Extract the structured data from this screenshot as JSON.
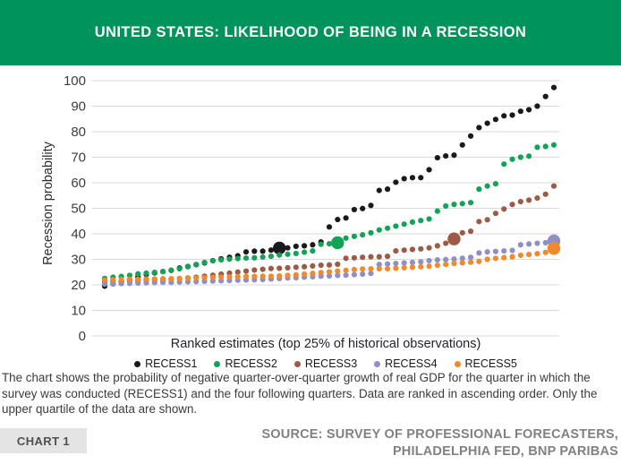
{
  "header": {
    "title": "UNITED STATES: LIKELIHOOD OF BEING IN A RECESSION",
    "bg_color": "#00935B"
  },
  "chart_data": {
    "type": "scatter",
    "title": "UNITED STATES: LIKELIHOOD OF BEING IN A RECESSION",
    "xlabel": "Ranked estimates (top 25% of historical observations)",
    "ylabel": "Recession probability",
    "ylim": [
      0,
      100
    ],
    "yticks": [
      0,
      10,
      20,
      30,
      40,
      50,
      60,
      70,
      80,
      90,
      100
    ],
    "grid": "horizontal",
    "legend_position": "bottom",
    "n_points": 55,
    "x_description": "Ranked ascending historical survey observations (upper quartile only); enlarged dot marks the current estimate within each ranked series",
    "series": [
      {
        "name": "RECESS1",
        "color": "#1a1a1a",
        "highlight_index": 21,
        "highlight_value": 34.4,
        "values": [
          19.5,
          20.4,
          21.2,
          22.1,
          23.1,
          24.1,
          24.7,
          25.2,
          25.7,
          26.6,
          27.2,
          27.9,
          28.6,
          29.5,
          30.2,
          30.8,
          31.4,
          32.9,
          33.2,
          33.2,
          33.6,
          34.4,
          34.5,
          35.1,
          35.3,
          35.7,
          36.8,
          42.7,
          45.6,
          46.2,
          49.5,
          49.9,
          51.1,
          57.0,
          57.5,
          60.2,
          61.6,
          62.0,
          62.0,
          65.1,
          69.8,
          70.5,
          70.8,
          74.8,
          78.3,
          81.6,
          83.3,
          84.8,
          86.2,
          86.5,
          88.0,
          88.6,
          90.0,
          93.8,
          97.3
        ]
      },
      {
        "name": "RECESS2",
        "color": "#12A356",
        "highlight_index": 28,
        "highlight_value": 36.5,
        "values": [
          22.5,
          23.0,
          23.3,
          23.7,
          24.3,
          24.6,
          24.9,
          25.2,
          25.7,
          26.3,
          27.1,
          28.0,
          28.8,
          29.4,
          29.8,
          30.1,
          30.3,
          30.5,
          30.6,
          30.9,
          31.2,
          31.7,
          32.0,
          32.3,
          32.8,
          33.3,
          35.9,
          36.1,
          36.5,
          38.3,
          39.0,
          39.6,
          40.4,
          41.5,
          42.2,
          43.0,
          43.8,
          44.6,
          45.2,
          45.8,
          48.9,
          50.9,
          51.5,
          51.8,
          52.2,
          57.5,
          58.7,
          59.6,
          67.3,
          69.2,
          70.0,
          70.4,
          73.9,
          74.2,
          74.8
        ]
      },
      {
        "name": "RECESS3",
        "color": "#9E5A45",
        "highlight_index": 42,
        "highlight_value": 38.0,
        "values": [
          21.3,
          21.4,
          21.5,
          21.6,
          21.7,
          21.8,
          21.9,
          22.0,
          22.2,
          22.4,
          22.7,
          23.0,
          23.4,
          23.8,
          24.2,
          24.6,
          25.0,
          25.4,
          25.8,
          26.1,
          26.4,
          26.5,
          26.7,
          26.9,
          27.1,
          27.4,
          27.7,
          27.8,
          28.1,
          30.4,
          30.6,
          30.8,
          31.0,
          31.0,
          31.2,
          33.3,
          33.6,
          33.9,
          34.1,
          34.5,
          35.3,
          36.3,
          38.0,
          40.4,
          41.0,
          44.8,
          45.5,
          48.0,
          49.7,
          51.5,
          52.6,
          53.2,
          54.0,
          55.5,
          58.7
        ]
      },
      {
        "name": "RECESS4",
        "color": "#8F8EC7",
        "highlight_index": 54,
        "highlight_value": 37.2,
        "values": [
          20.3,
          20.4,
          20.5,
          20.6,
          20.7,
          20.8,
          20.9,
          21.0,
          21.0,
          21.1,
          21.2,
          21.3,
          21.4,
          21.5,
          21.6,
          21.7,
          21.8,
          21.9,
          22.0,
          22.1,
          22.3,
          22.5,
          22.7,
          22.8,
          23.0,
          23.2,
          23.4,
          23.5,
          23.7,
          23.8,
          24.0,
          24.2,
          24.5,
          28.0,
          28.2,
          28.4,
          28.6,
          28.8,
          29.0,
          29.5,
          29.8,
          29.9,
          30.1,
          30.4,
          30.8,
          32.5,
          32.9,
          33.1,
          33.3,
          33.5,
          35.7,
          36.0,
          36.3,
          36.5,
          37.2
        ]
      },
      {
        "name": "RECESS5",
        "color": "#F08A2C",
        "highlight_index": 54,
        "highlight_value": 34.3,
        "values": [
          21.9,
          22.0,
          22.1,
          22.2,
          22.2,
          22.3,
          22.3,
          22.4,
          22.4,
          22.5,
          22.6,
          22.7,
          22.8,
          22.9,
          23.0,
          23.1,
          23.2,
          23.3,
          23.3,
          23.4,
          23.4,
          23.5,
          23.7,
          23.9,
          24.2,
          24.5,
          24.8,
          25.1,
          25.4,
          25.7,
          26.0,
          26.2,
          26.3,
          26.3,
          26.3,
          26.5,
          26.7,
          26.9,
          27.1,
          27.3,
          27.7,
          28.0,
          28.4,
          28.6,
          28.9,
          29.2,
          30.0,
          30.4,
          30.7,
          31.0,
          31.6,
          31.9,
          32.2,
          32.7,
          34.3
        ]
      }
    ]
  },
  "footnote": "The chart shows the probability of negative quarter-over-quarter growth of real GDP for the quarter in which the survey was conducted (RECESS1) and the four following quarters. Data are ranked in ascending order. Only the upper quartile of the data are shown.",
  "badge": "CHART 1",
  "source": {
    "line1": "SOURCE: SURVEY OF PROFESSIONAL FORECASTERS,",
    "line2": "PHILADELPHIA FED, BNP PARIBAS"
  },
  "colors": {
    "banner_green": "#00935B",
    "gridline": "#D9D9D9",
    "tick_text": "#3D3D3D",
    "footnote_text": "#3B3B3B",
    "source_text": "#818181",
    "badge_bg": "#E4E4E4"
  }
}
